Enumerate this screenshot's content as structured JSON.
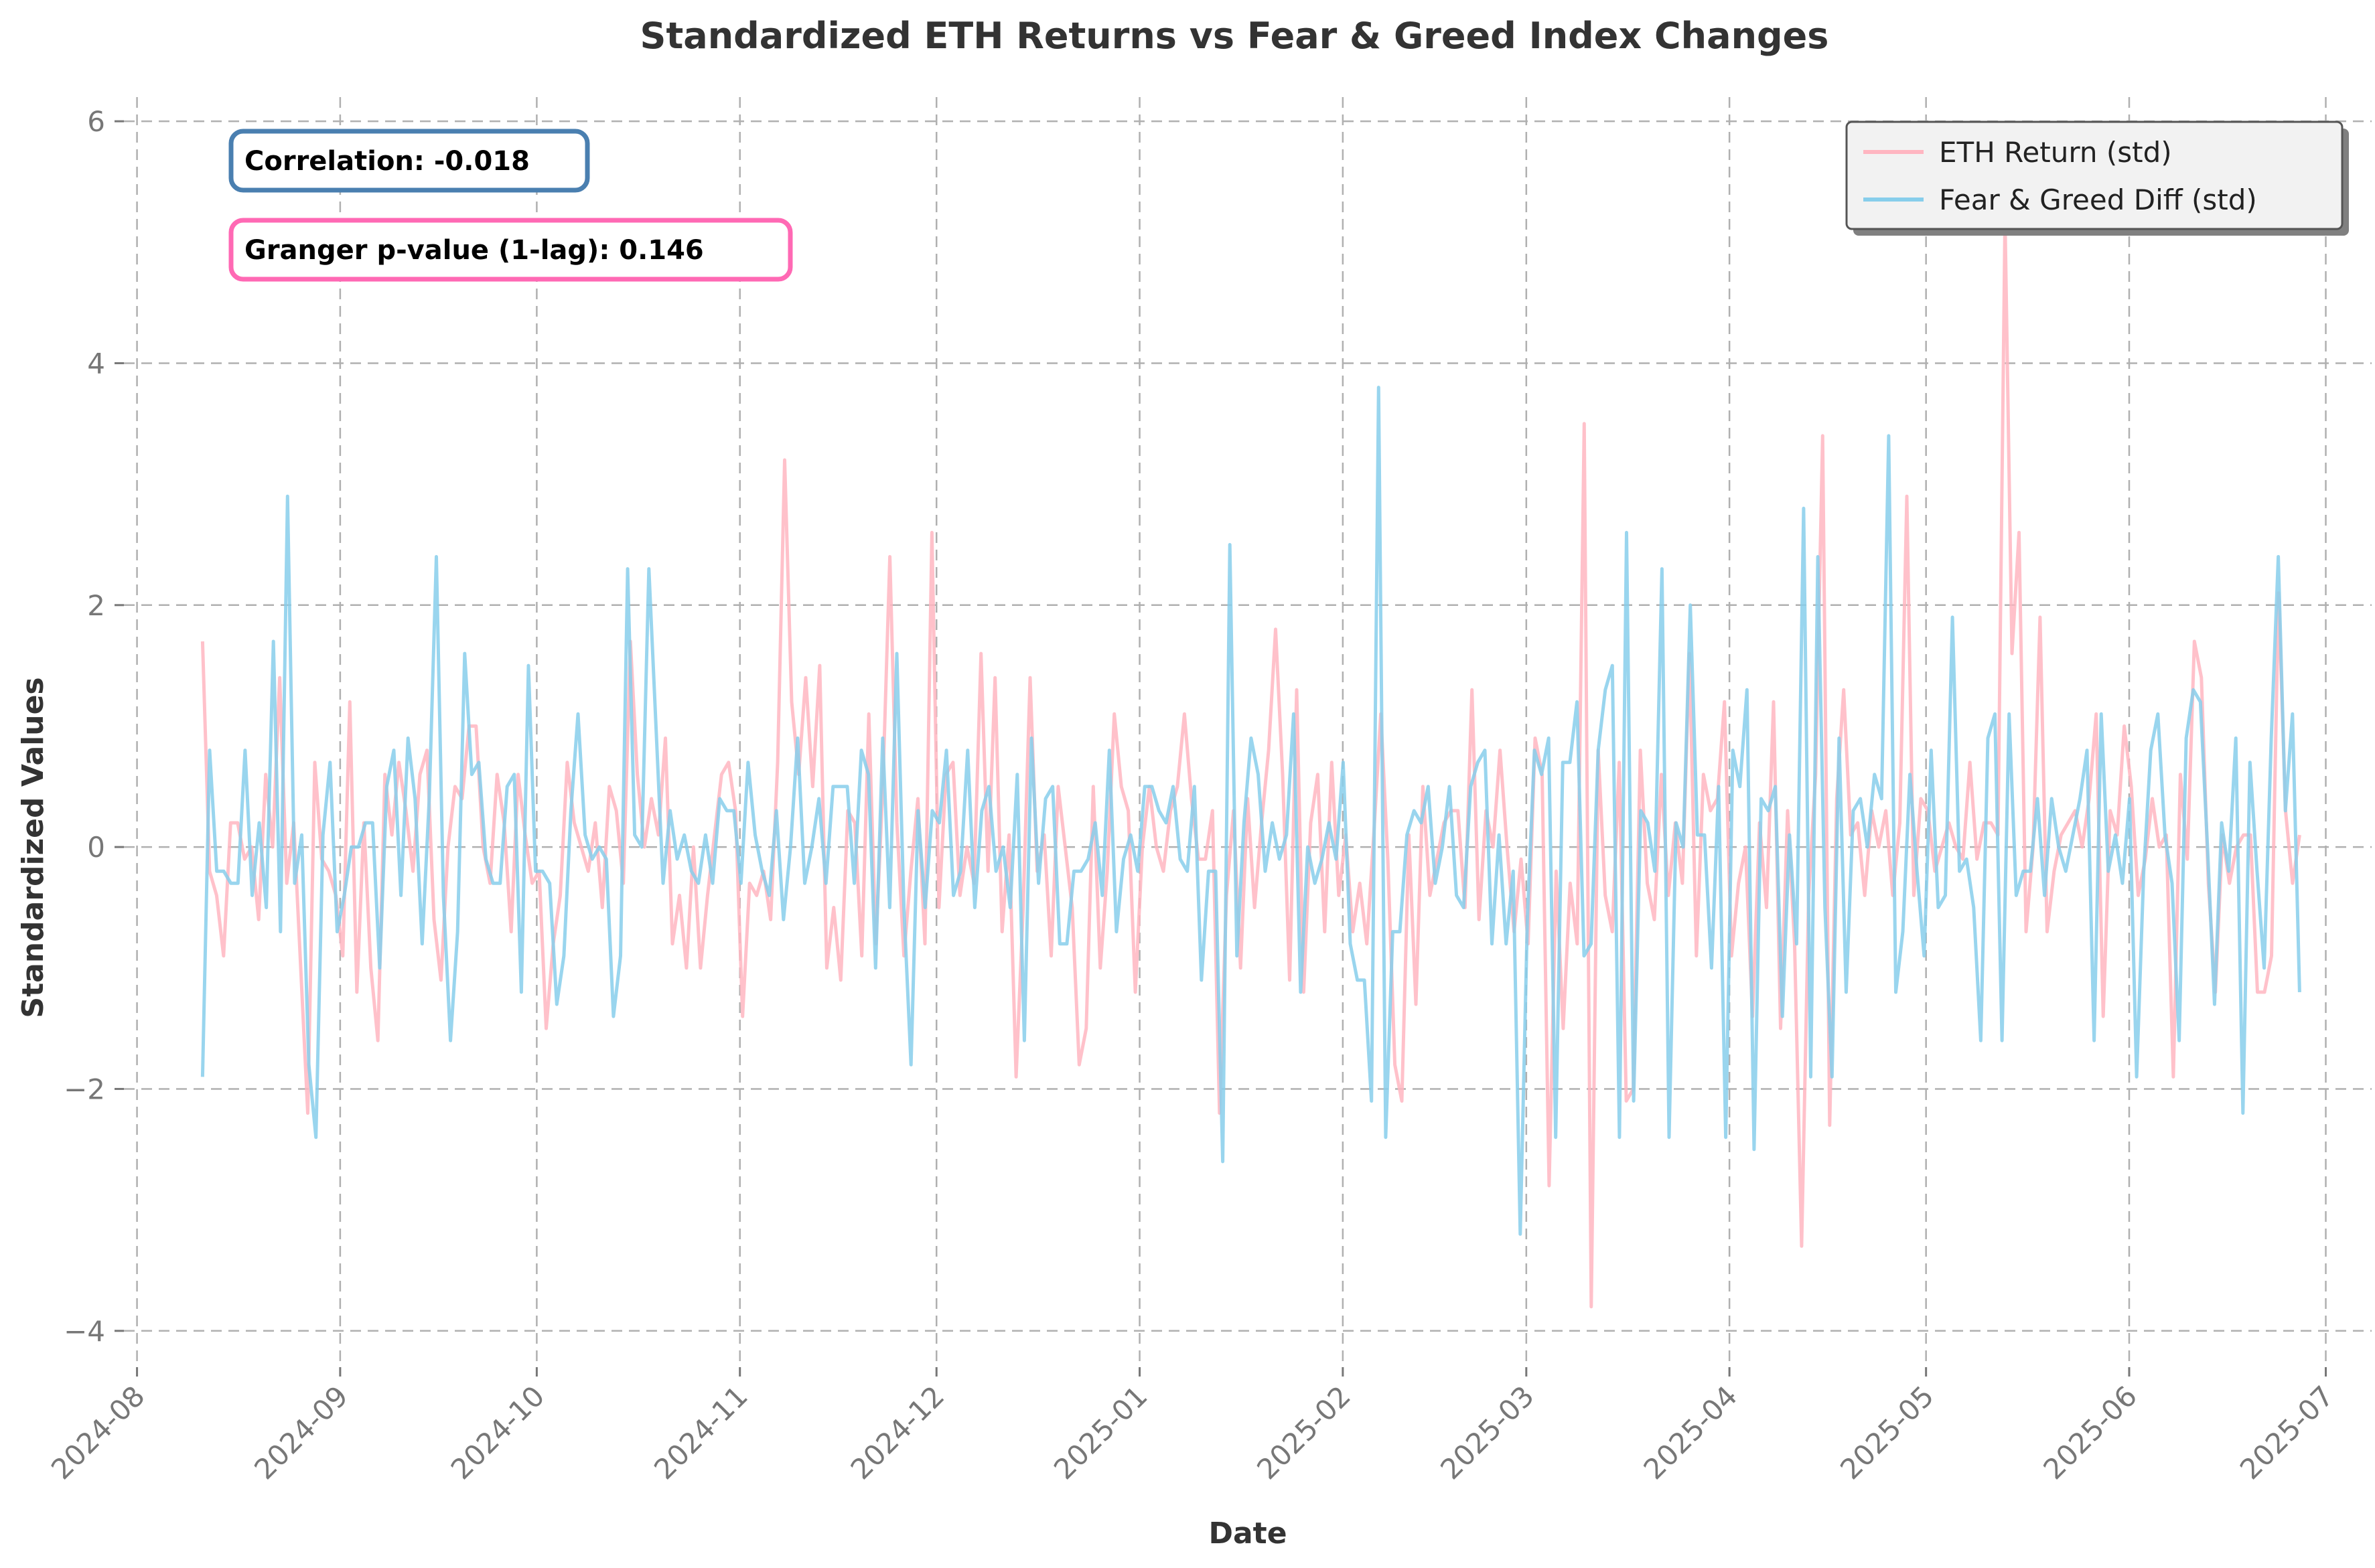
{
  "chart_data": {
    "type": "line",
    "title": "Standardized ETH Returns vs Fear & Greed Index Changes",
    "xlabel": "Date",
    "ylabel": "Standardized Values",
    "x_start": "2024-08-11",
    "x_end": "2025-06-27",
    "xlim": [
      "2024-07-30",
      "2025-07-08"
    ],
    "ylim": [
      -4.3,
      6.2
    ],
    "x_ticks": [
      "2024-08",
      "2024-09",
      "2024-10",
      "2024-11",
      "2024-12",
      "2025-01",
      "2025-02",
      "2025-03",
      "2025-04",
      "2025-05",
      "2025-06",
      "2025-07"
    ],
    "y_ticks": [
      -4,
      -2,
      0,
      2,
      4,
      6
    ],
    "y_tick_labels": [
      "−4",
      "−2",
      "0",
      "2",
      "4",
      "6"
    ],
    "grid": true,
    "legend_position": "top-right",
    "annotations": [
      {
        "text": "Correlation: -0.018",
        "border_color": "#4a7fb0"
      },
      {
        "text": "Granger p-value (1-lag): 0.146",
        "border_color": "#ff69b4"
      }
    ],
    "series": [
      {
        "name": "ETH Return (std)",
        "color": "#ffb6c1",
        "values": [
          1.7,
          -0.2,
          -0.4,
          -0.9,
          0.2,
          0.2,
          -0.1,
          0.0,
          -0.6,
          0.6,
          0.0,
          1.4,
          -0.3,
          0.2,
          -1.0,
          -2.2,
          0.7,
          -0.1,
          -0.2,
          -0.4,
          -0.9,
          1.2,
          -1.2,
          0.2,
          -1.0,
          -1.6,
          0.6,
          0.1,
          0.7,
          0.3,
          -0.2,
          0.6,
          0.8,
          -0.6,
          -1.1,
          0.0,
          0.5,
          0.4,
          1.0,
          1.0,
          0.0,
          -0.3,
          0.6,
          0.2,
          -0.7,
          0.6,
          0.1,
          -0.3,
          -0.2,
          -1.5,
          -0.8,
          -0.4,
          0.7,
          0.2,
          0.0,
          -0.2,
          0.2,
          -0.5,
          0.5,
          0.3,
          -0.3,
          1.7,
          0.6,
          0.0,
          0.4,
          0.1,
          0.9,
          -0.8,
          -0.4,
          -1.0,
          0.0,
          -1.0,
          -0.4,
          0.1,
          0.6,
          0.7,
          0.3,
          -1.4,
          -0.3,
          -0.4,
          -0.2,
          -0.6,
          0.7,
          3.2,
          1.2,
          0.6,
          1.4,
          0.5,
          1.5,
          -1.0,
          -0.5,
          -1.1,
          0.3,
          0.2,
          -0.9,
          1.1,
          -0.8,
          0.5,
          2.4,
          0.2,
          -0.9,
          -0.2,
          0.4,
          -0.8,
          2.6,
          -0.5,
          0.6,
          0.7,
          -0.4,
          0.0,
          -0.3,
          1.6,
          -0.2,
          1.4,
          -0.7,
          0.1,
          -1.9,
          -0.5,
          1.4,
          -0.2,
          0.1,
          -0.9,
          0.5,
          0.0,
          -0.5,
          -1.8,
          -1.5,
          0.5,
          -1.0,
          -0.2,
          1.1,
          0.5,
          0.3,
          -1.2,
          0.0,
          0.5,
          0.0,
          -0.2,
          0.3,
          0.5,
          1.1,
          0.4,
          -0.1,
          -0.1,
          0.3,
          -2.2,
          -0.4,
          0.3,
          -1.0,
          0.4,
          -0.5,
          0.2,
          0.8,
          1.8,
          0.6,
          -1.1,
          1.3,
          -1.2,
          0.2,
          0.6,
          -0.7,
          0.7,
          -0.4,
          0.1,
          -0.7,
          -0.3,
          -0.8,
          0.1,
          1.1,
          -0.1,
          -1.8,
          -2.1,
          0.1,
          -1.3,
          0.5,
          -0.4,
          -0.1,
          0.2,
          0.3,
          0.3,
          -0.5,
          1.3,
          -0.6,
          0.3,
          0.0,
          0.8,
          0.0,
          -0.7,
          -0.1,
          -0.8,
          0.9,
          0.6,
          -2.8,
          -0.2,
          -1.5,
          -0.3,
          -0.8,
          3.5,
          -3.8,
          0.8,
          -0.4,
          -0.7,
          0.7,
          -2.1,
          -2.0,
          0.8,
          -0.3,
          -0.6,
          0.6,
          -0.4,
          0.2,
          -0.3,
          1.6,
          -0.9,
          0.6,
          0.3,
          0.4,
          1.2,
          -0.9,
          -0.3,
          0.0,
          -1.4,
          0.2,
          -0.5,
          1.2,
          -1.5,
          0.3,
          -0.8,
          -3.3,
          -0.4,
          0.6,
          3.4,
          -2.3,
          0.4,
          1.3,
          0.1,
          0.2,
          -0.4,
          0.3,
          0.0,
          0.3,
          -0.4,
          0.2,
          2.9,
          -0.4,
          0.4,
          0.3,
          -0.2,
          0.0,
          0.2,
          0.0,
          -0.1,
          0.7,
          -0.1,
          0.2,
          0.2,
          0.1,
          5.2,
          1.6,
          2.6,
          -0.7,
          0.0,
          1.9,
          -0.7,
          -0.2,
          0.1,
          0.2,
          0.3,
          0.0,
          0.4,
          1.1,
          -1.4,
          0.3,
          0.1,
          1.0,
          0.5,
          -0.4,
          -0.1,
          0.4,
          0.0,
          0.1,
          -1.9,
          0.6,
          -0.1,
          1.7,
          1.4,
          -0.3,
          -1.2,
          0.1,
          -0.3,
          0.0,
          0.1,
          0.1,
          -1.2,
          -1.2,
          -0.9,
          2.1,
          0.3,
          -0.3,
          0.1
        ]
      },
      {
        "name": "Fear & Greed Diff (std)",
        "color": "#87ceeb",
        "values": [
          -1.9,
          0.8,
          -0.2,
          -0.2,
          -0.3,
          -0.3,
          0.8,
          -0.4,
          0.2,
          -0.5,
          1.7,
          -0.7,
          2.9,
          -0.3,
          0.1,
          -1.8,
          -2.4,
          0.1,
          0.7,
          -0.7,
          -0.4,
          0.0,
          0.0,
          0.2,
          0.2,
          -1.0,
          0.5,
          0.8,
          -0.4,
          0.9,
          0.4,
          -0.8,
          0.4,
          2.4,
          -0.4,
          -1.6,
          -0.7,
          1.6,
          0.6,
          0.7,
          -0.1,
          -0.3,
          -0.3,
          0.5,
          0.6,
          -1.2,
          1.5,
          -0.2,
          -0.2,
          -0.3,
          -1.3,
          -0.9,
          0.3,
          1.1,
          0.1,
          -0.1,
          0.0,
          -0.1,
          -1.4,
          -0.9,
          2.3,
          0.1,
          0.0,
          2.3,
          1.0,
          -0.3,
          0.3,
          -0.1,
          0.1,
          -0.2,
          -0.3,
          0.1,
          -0.3,
          0.4,
          0.3,
          0.3,
          -0.3,
          0.7,
          0.1,
          -0.2,
          -0.4,
          0.3,
          -0.6,
          0.0,
          0.9,
          -0.3,
          0.0,
          0.4,
          -0.3,
          0.5,
          0.5,
          0.5,
          -0.3,
          0.8,
          0.6,
          -1.0,
          0.9,
          -0.5,
          1.6,
          -0.5,
          -1.8,
          0.3,
          -0.5,
          0.3,
          0.2,
          0.8,
          -0.4,
          -0.2,
          0.8,
          -0.5,
          0.3,
          0.5,
          -0.2,
          0.0,
          -0.5,
          0.6,
          -1.6,
          0.9,
          -0.3,
          0.4,
          0.5,
          -0.8,
          -0.8,
          -0.2,
          -0.2,
          -0.1,
          0.2,
          -0.4,
          0.8,
          -0.7,
          -0.1,
          0.1,
          -0.2,
          0.5,
          0.5,
          0.3,
          0.2,
          0.5,
          -0.1,
          -0.2,
          0.5,
          -1.1,
          -0.2,
          -0.2,
          -2.6,
          2.5,
          -0.9,
          0.2,
          0.9,
          0.6,
          -0.2,
          0.2,
          -0.1,
          0.1,
          1.1,
          -1.2,
          0.0,
          -0.3,
          -0.1,
          0.2,
          -0.1,
          0.7,
          -0.8,
          -1.1,
          -1.1,
          -2.1,
          3.8,
          -2.4,
          -0.7,
          -0.7,
          0.1,
          0.3,
          0.2,
          0.5,
          -0.3,
          0.0,
          0.5,
          -0.4,
          -0.5,
          0.5,
          0.7,
          0.8,
          -0.8,
          0.1,
          -0.8,
          -0.2,
          -3.2,
          -0.6,
          0.8,
          0.6,
          0.9,
          -2.4,
          0.7,
          0.7,
          1.2,
          -0.9,
          -0.8,
          0.8,
          1.3,
          1.5,
          -2.4,
          2.6,
          -2.1,
          0.3,
          0.2,
          -0.2,
          2.3,
          -2.4,
          0.2,
          0.0,
          2.0,
          0.1,
          0.1,
          -1.0,
          0.5,
          -2.4,
          0.8,
          0.5,
          1.3,
          -2.5,
          0.4,
          0.3,
          0.5,
          -1.4,
          0.1,
          -0.8,
          2.8,
          -1.9,
          2.4,
          -0.5,
          -1.9,
          0.9,
          -1.2,
          0.3,
          0.4,
          0.0,
          0.6,
          0.4,
          3.4,
          -1.2,
          -0.7,
          0.6,
          -0.2,
          -0.9,
          0.8,
          -0.5,
          -0.4,
          1.9,
          -0.2,
          -0.1,
          -0.5,
          -1.6,
          0.9,
          1.1,
          -1.6,
          1.1,
          -0.4,
          -0.2,
          -0.2,
          0.4,
          -0.4,
          0.4,
          0.0,
          -0.2,
          0.1,
          0.4,
          0.8,
          -1.6,
          1.1,
          -0.2,
          0.1,
          -0.3,
          0.4,
          -1.9,
          -0.2,
          0.8,
          1.1,
          0.1,
          -0.3,
          -1.6,
          0.9,
          1.3,
          1.2,
          0.0,
          -1.3,
          0.2,
          -0.2,
          0.9,
          -2.2,
          0.7,
          -0.2,
          -1.0,
          0.9,
          2.4,
          0.3,
          1.1,
          -1.2
        ]
      }
    ]
  }
}
